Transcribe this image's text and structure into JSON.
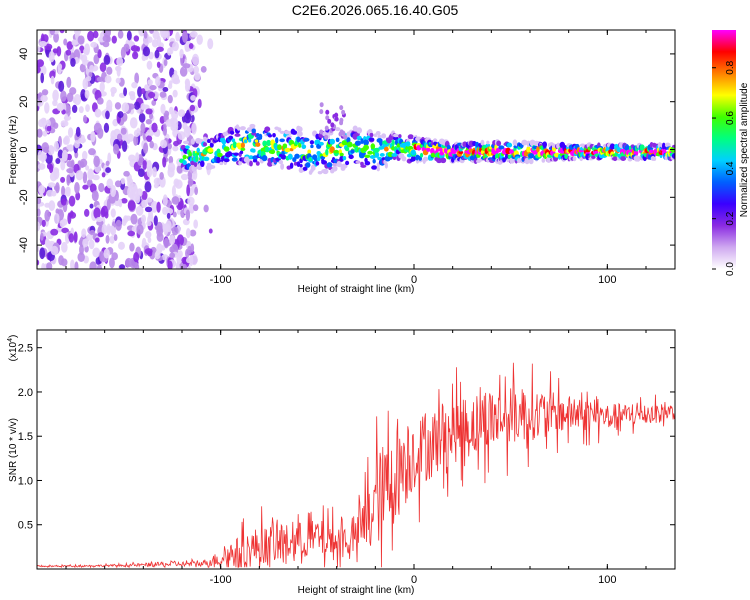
{
  "title": "C2E6.2026.065.16.40.G05",
  "chart_data": [
    {
      "type": "heatmap",
      "name": "spectrogram",
      "xlabel": "Height of straight line (km)",
      "ylabel": "Frequency (Hz)",
      "xlim": [
        -195,
        135
      ],
      "ylim": [
        -50,
        50
      ],
      "xticks": [
        -100,
        0,
        100
      ],
      "xtick_labels": [
        "-100",
        "0",
        "100"
      ],
      "yticks": [
        -40,
        -20,
        0,
        20,
        40
      ],
      "ytick_labels": [
        "-40",
        "-20",
        "0",
        "20",
        "40"
      ],
      "noise_region_x": [
        -195,
        -112
      ],
      "signal_track": {
        "x": [
          -120,
          -110,
          -100,
          -90,
          -80,
          -70,
          -60,
          -50,
          -40,
          -30,
          -20,
          -10,
          0,
          20,
          40,
          60,
          80,
          100,
          120,
          135
        ],
        "freq": [
          -3,
          -2,
          0,
          2,
          2,
          1,
          0,
          -1,
          0,
          1,
          -1,
          1,
          0,
          -1,
          -1,
          -1,
          -1,
          -1,
          -1,
          -1
        ],
        "spread": [
          6,
          6,
          7,
          8,
          8,
          8,
          9,
          9,
          9,
          8,
          8,
          6,
          5,
          4,
          4,
          4,
          3,
          3,
          3,
          3
        ]
      },
      "colorbar": {
        "label": "Normalized spectral amplitude",
        "range": [
          0,
          0.95
        ],
        "ticks": [
          0.0,
          0.2,
          0.4,
          0.6,
          0.8
        ],
        "tick_labels": [
          "0.0",
          "0.2",
          "0.4",
          "0.6",
          "0.8"
        ],
        "colors": [
          "#ffffff",
          "#cfa8f0",
          "#8a2be2",
          "#3a00ff",
          "#0060ff",
          "#00d0ff",
          "#00ff80",
          "#40ff00",
          "#ffff00",
          "#ff8000",
          "#ff0000",
          "#ff00ff"
        ]
      }
    },
    {
      "type": "line",
      "name": "snr",
      "xlabel": "Height of straight line (km)",
      "ylabel": "SNR (10 * v/v)",
      "y_multiplier_label": "(x10",
      "y_multiplier_exp": "4",
      "y_multiplier_close": ")",
      "xlim": [
        -195,
        135
      ],
      "ylim": [
        0,
        2.7
      ],
      "xticks": [
        -100,
        0,
        100
      ],
      "xtick_labels": [
        "-100",
        "0",
        "100"
      ],
      "yticks": [
        0.5,
        1.0,
        1.5,
        2.0,
        2.5
      ],
      "ytick_labels": [
        "0.5",
        "1.0",
        "1.5",
        "2.0",
        "2.5"
      ],
      "line_color": "#ee3333",
      "trend": {
        "x": [
          -195,
          -150,
          -135,
          -110,
          -100,
          -90,
          -80,
          -70,
          -60,
          -50,
          -40,
          -30,
          -20,
          -10,
          0,
          20,
          40,
          60,
          80,
          100,
          120,
          135
        ],
        "mean": [
          0.03,
          0.04,
          0.05,
          0.06,
          0.12,
          0.2,
          0.25,
          0.28,
          0.32,
          0.35,
          0.3,
          0.35,
          0.75,
          1.05,
          1.3,
          1.55,
          1.7,
          1.75,
          1.75,
          1.72,
          1.75,
          1.78
        ],
        "amp": [
          0.01,
          0.02,
          0.04,
          0.05,
          0.15,
          0.3,
          0.4,
          0.35,
          0.35,
          0.35,
          0.35,
          0.3,
          0.9,
          0.9,
          0.7,
          0.6,
          0.6,
          0.5,
          0.35,
          0.25,
          0.2,
          0.15
        ]
      }
    }
  ]
}
